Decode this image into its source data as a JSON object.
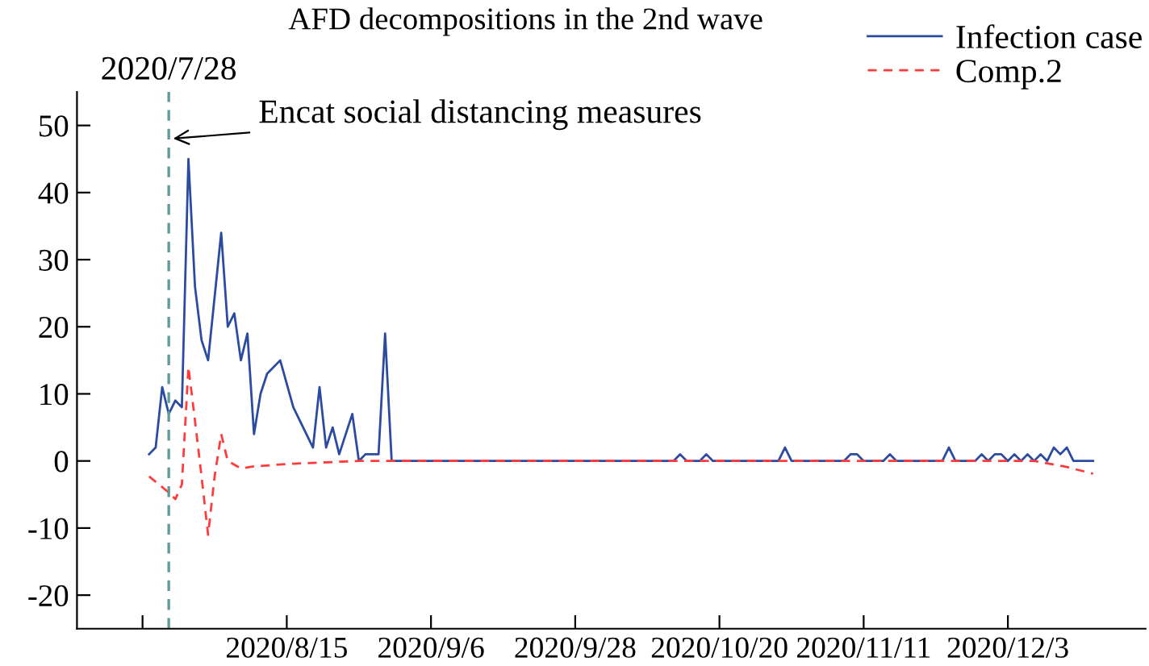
{
  "chart_data": {
    "type": "line",
    "title": "AFD decompositions in the 2nd wave",
    "series": [
      {
        "name": "Infection case",
        "color": "#2b4ba0",
        "line_style": "solid",
        "x": [
          "2020-07-25",
          "2020-07-26",
          "2020-07-27",
          "2020-07-28",
          "2020-07-29",
          "2020-07-30",
          "2020-07-31",
          "2020-08-01",
          "2020-08-02",
          "2020-08-03",
          "2020-08-05",
          "2020-08-06",
          "2020-08-07",
          "2020-08-08",
          "2020-08-09",
          "2020-08-10",
          "2020-08-11",
          "2020-08-12",
          "2020-08-14",
          "2020-08-16",
          "2020-08-19",
          "2020-08-20",
          "2020-08-21",
          "2020-08-22",
          "2020-08-23",
          "2020-08-25",
          "2020-08-26",
          "2020-08-27",
          "2020-08-29",
          "2020-08-30",
          "2020-08-31",
          "2020-10-13",
          "2020-10-14",
          "2020-10-15",
          "2020-10-17",
          "2020-10-18",
          "2020-10-19",
          "2020-10-29",
          "2020-10-30",
          "2020-10-31",
          "2020-11-08",
          "2020-11-09",
          "2020-11-10",
          "2020-11-11",
          "2020-11-14",
          "2020-11-15",
          "2020-11-16",
          "2020-11-23",
          "2020-11-24",
          "2020-11-25",
          "2020-11-28",
          "2020-11-29",
          "2020-11-30",
          "2020-12-01",
          "2020-12-02",
          "2020-12-03",
          "2020-12-04",
          "2020-12-05",
          "2020-12-06",
          "2020-12-07",
          "2020-12-08",
          "2020-12-09",
          "2020-12-10",
          "2020-12-11",
          "2020-12-12",
          "2020-12-13",
          "2020-12-16"
        ],
        "values": [
          1,
          2,
          11,
          7,
          9,
          8,
          45,
          26,
          18,
          15,
          34,
          20,
          22,
          15,
          19,
          4,
          10,
          13,
          15,
          8,
          2,
          11,
          2,
          5,
          1,
          7,
          0,
          1,
          1,
          19,
          0,
          0,
          1,
          0,
          0,
          1,
          0,
          0,
          2,
          0,
          0,
          1,
          1,
          0,
          0,
          1,
          0,
          0,
          2,
          0,
          0,
          1,
          0,
          1,
          1,
          0,
          1,
          0,
          1,
          0,
          1,
          0,
          2,
          1,
          2,
          0,
          0
        ]
      },
      {
        "name": "Comp.2",
        "color": "#ff3b3b",
        "line_style": "dashed",
        "x": [
          "2020-07-25",
          "2020-07-28",
          "2020-07-29",
          "2020-07-30",
          "2020-07-31",
          "2020-08-01",
          "2020-08-02",
          "2020-08-03",
          "2020-08-04",
          "2020-08-05",
          "2020-08-06",
          "2020-08-08",
          "2020-08-10",
          "2020-08-16",
          "2020-08-26",
          "2020-12-07",
          "2020-12-12",
          "2020-12-16"
        ],
        "values": [
          -2.3,
          -4.7,
          -5.7,
          -3.5,
          14,
          6,
          -2.3,
          -11,
          -2.3,
          4,
          0,
          -1.1,
          -0.8,
          -0.4,
          0,
          0,
          -0.9,
          -1.9
        ]
      }
    ],
    "xlim": [
      "2020-07-14",
      "2020-12-24"
    ],
    "xticks": [
      {
        "value": "2020-07-24",
        "label": null
      },
      {
        "value": "2020-08-15",
        "label": "2020/8/15"
      },
      {
        "value": "2020-09-06",
        "label": "2020/9/6"
      },
      {
        "value": "2020-09-28",
        "label": "2020/9/28"
      },
      {
        "value": "2020-10-20",
        "label": "2020/10/20"
      },
      {
        "value": "2020-11-11",
        "label": "2020/11/11"
      },
      {
        "value": "2020-12-03",
        "label": "2020/12/3"
      }
    ],
    "ylim": [
      -25,
      55
    ],
    "yticks": [
      -20,
      -10,
      0,
      10,
      20,
      30,
      40,
      50
    ],
    "ref_lines": [
      {
        "axis": "x",
        "value": "2020-07-28",
        "label": "2020/7/28",
        "color": "#5f9b9b",
        "line_style": "dashed"
      }
    ],
    "annotations": [
      {
        "text": "Encat social distancing measures",
        "x": "2020-07-28",
        "y": 48
      }
    ],
    "legend": "top right",
    "grid": false
  }
}
